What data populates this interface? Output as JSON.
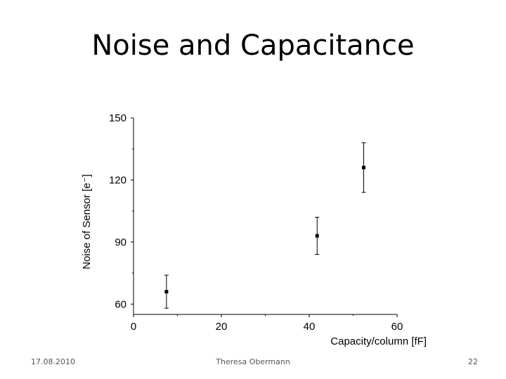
{
  "slide": {
    "title": "Noise and Capacitance",
    "footer_date": "17.08.2010",
    "footer_author": "Theresa Obermann",
    "footer_page": "22"
  },
  "chart_data": {
    "type": "scatter",
    "title": "",
    "xlabel": "Capacity/column [fF]",
    "ylabel": "Noise of Sensor [e⁻]",
    "xlim": [
      0,
      60
    ],
    "ylim": [
      55,
      150
    ],
    "x_ticks": [
      0,
      20,
      40,
      60
    ],
    "y_ticks": [
      60,
      90,
      120,
      150
    ],
    "grid": false,
    "series": [
      {
        "points": [
          {
            "x": 7.5,
            "y": 66,
            "err_low": 58,
            "err_high": 74
          },
          {
            "x": 41.8,
            "y": 93,
            "err_low": 84,
            "err_high": 102
          },
          {
            "x": 52.4,
            "y": 126,
            "err_low": 114,
            "err_high": 138
          }
        ]
      }
    ]
  }
}
